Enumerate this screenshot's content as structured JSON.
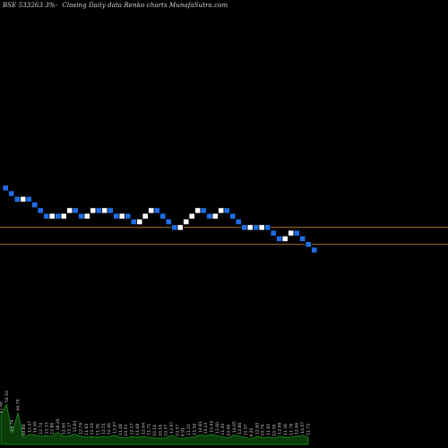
{
  "header": {
    "symbol": "BSE 533263 3%-",
    "chart_desc": "Closing Daily data Renko charts MunafaSutra.com"
  },
  "colors": {
    "background": "#000000",
    "up_brick": "#ffffff",
    "down_brick": "#1e6ee6",
    "level_line": "#b07428",
    "volume_fill": "#0a3d0a",
    "volume_line": "#1fa01f",
    "volume_label": "#c8c8c8"
  },
  "chart_data": {
    "type": "renko",
    "directions": [
      "down",
      "down",
      "down",
      "up",
      "down",
      "down",
      "down",
      "down",
      "up",
      "down",
      "up",
      "up",
      "down",
      "down",
      "up",
      "up",
      "down",
      "up",
      "down",
      "down",
      "up",
      "down",
      "down",
      "up",
      "up",
      "up",
      "down",
      "down",
      "down",
      "down",
      "up",
      "up",
      "up",
      "up",
      "down",
      "down",
      "up",
      "up",
      "down",
      "down",
      "down",
      "down",
      "up",
      "down",
      "up",
      "down",
      "down",
      "down",
      "up",
      "up",
      "down",
      "down",
      "down",
      "down"
    ],
    "start_level": 0,
    "reference_levels": [
      -8.5,
      -11.5
    ],
    "volume_labels": [
      "41.48",
      "56.10",
      "16.79",
      "44.70",
      "10.80",
      "15.37",
      "14.65",
      "12.74",
      "13.33",
      "12.86",
      "18.26",
      "12.64",
      "13.17",
      "15.81",
      "12.76",
      "11.63",
      "12.19",
      "11.36",
      "12.51",
      "12.46",
      "13.97",
      "11.28",
      "10.53",
      "12.17",
      "11.69",
      "12.64",
      "11.71",
      "10.16",
      "10.16",
      "10.57",
      "13.97",
      "10.57",
      "9.91",
      "11.21",
      "11.92",
      "14.81",
      "13.23",
      "15.42",
      "13.60",
      "11.93",
      "10.49",
      "14.65",
      "12.86",
      "11.07",
      "9.22",
      "12.60",
      "10.74",
      "11.65",
      "10.39",
      "12.99",
      "11.36",
      "11.76",
      "12.66",
      "14.07",
      "11.73"
    ]
  }
}
